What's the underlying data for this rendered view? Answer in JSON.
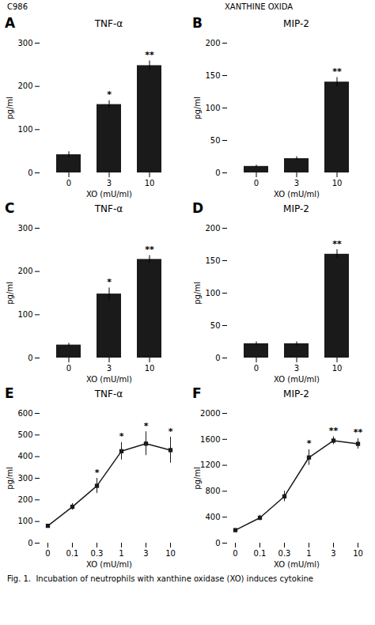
{
  "header_left": "C986",
  "header_right": "XANTHINE OXIDA",
  "caption": "Fig. 1.  Incubation of neutrophils with xanthine oxidase (XO) induces cytokine",
  "chart_data": [
    {
      "type": "bar",
      "panel_label": "A",
      "title": "TNF-α",
      "categories": [
        0,
        3,
        10
      ],
      "values": [
        42,
        158,
        248
      ],
      "errors": [
        7,
        9,
        11
      ],
      "significance": [
        null,
        "*",
        "**"
      ],
      "color": "#1a1a1a",
      "ylim": [
        0,
        300
      ],
      "yticks": [
        0,
        100,
        200,
        300
      ],
      "xlabel": "XO (mU/ml)",
      "ylabel": "pg/ml",
      "grid": false
    },
    {
      "type": "bar",
      "panel_label": "B",
      "title": "MIP-2",
      "categories": [
        0,
        3,
        10
      ],
      "values": [
        10,
        22,
        140
      ],
      "errors": [
        2,
        3,
        7
      ],
      "significance": [
        null,
        null,
        "**"
      ],
      "color": "#1a1a1a",
      "ylim": [
        0,
        200
      ],
      "yticks": [
        0,
        50,
        100,
        150,
        200
      ],
      "xlabel": "XO (mU/ml)",
      "ylabel": "pg/ml",
      "grid": false
    },
    {
      "type": "bar",
      "panel_label": "C",
      "title": "TNF-α",
      "categories": [
        0,
        3,
        10
      ],
      "values": [
        30,
        148,
        228
      ],
      "errors": [
        4,
        14,
        9
      ],
      "significance": [
        null,
        "*",
        "**"
      ],
      "color": "#1a1a1a",
      "ylim": [
        0,
        300
      ],
      "yticks": [
        0,
        100,
        200,
        300
      ],
      "xlabel": "XO (mU/ml)",
      "ylabel": "pg/ml",
      "grid": false
    },
    {
      "type": "bar",
      "panel_label": "D",
      "title": "MIP-2",
      "categories": [
        0,
        3,
        10
      ],
      "values": [
        22,
        22,
        160
      ],
      "errors": [
        3,
        3,
        7
      ],
      "significance": [
        null,
        null,
        "**"
      ],
      "color": "#1a1a1a",
      "ylim": [
        0,
        200
      ],
      "yticks": [
        0,
        50,
        100,
        150,
        200
      ],
      "xlabel": "XO (mU/ml)",
      "ylabel": "pg/ml",
      "grid": false
    },
    {
      "type": "line",
      "panel_label": "E",
      "title": "TNF-α",
      "categories": [
        "0",
        "0.1",
        "0.3",
        "1",
        "3",
        "10"
      ],
      "values": [
        80,
        168,
        265,
        425,
        460,
        430
      ],
      "errors": [
        8,
        15,
        35,
        40,
        55,
        60
      ],
      "significance": [
        null,
        null,
        "*",
        "*",
        "*",
        "*"
      ],
      "color": "#1a1a1a",
      "marker": "square",
      "ylim": [
        0,
        600
      ],
      "yticks": [
        0,
        100,
        200,
        300,
        400,
        500,
        600
      ],
      "xlabel": "XO (mU/ml)",
      "ylabel": "pg/ml",
      "grid": false
    },
    {
      "type": "line",
      "panel_label": "F",
      "title": "MIP-2",
      "categories": [
        "0",
        "0.1",
        "0.3",
        "1",
        "3",
        "10"
      ],
      "values": [
        200,
        390,
        720,
        1320,
        1580,
        1530
      ],
      "errors": [
        20,
        40,
        80,
        120,
        60,
        80
      ],
      "significance": [
        null,
        null,
        null,
        "*",
        "**",
        "**"
      ],
      "color": "#1a1a1a",
      "marker": "square",
      "ylim": [
        0,
        2000
      ],
      "yticks": [
        0,
        400,
        800,
        1200,
        1600,
        2000
      ],
      "xlabel": "XO (mU/ml)",
      "ylabel": "pg/ml",
      "grid": false
    }
  ]
}
